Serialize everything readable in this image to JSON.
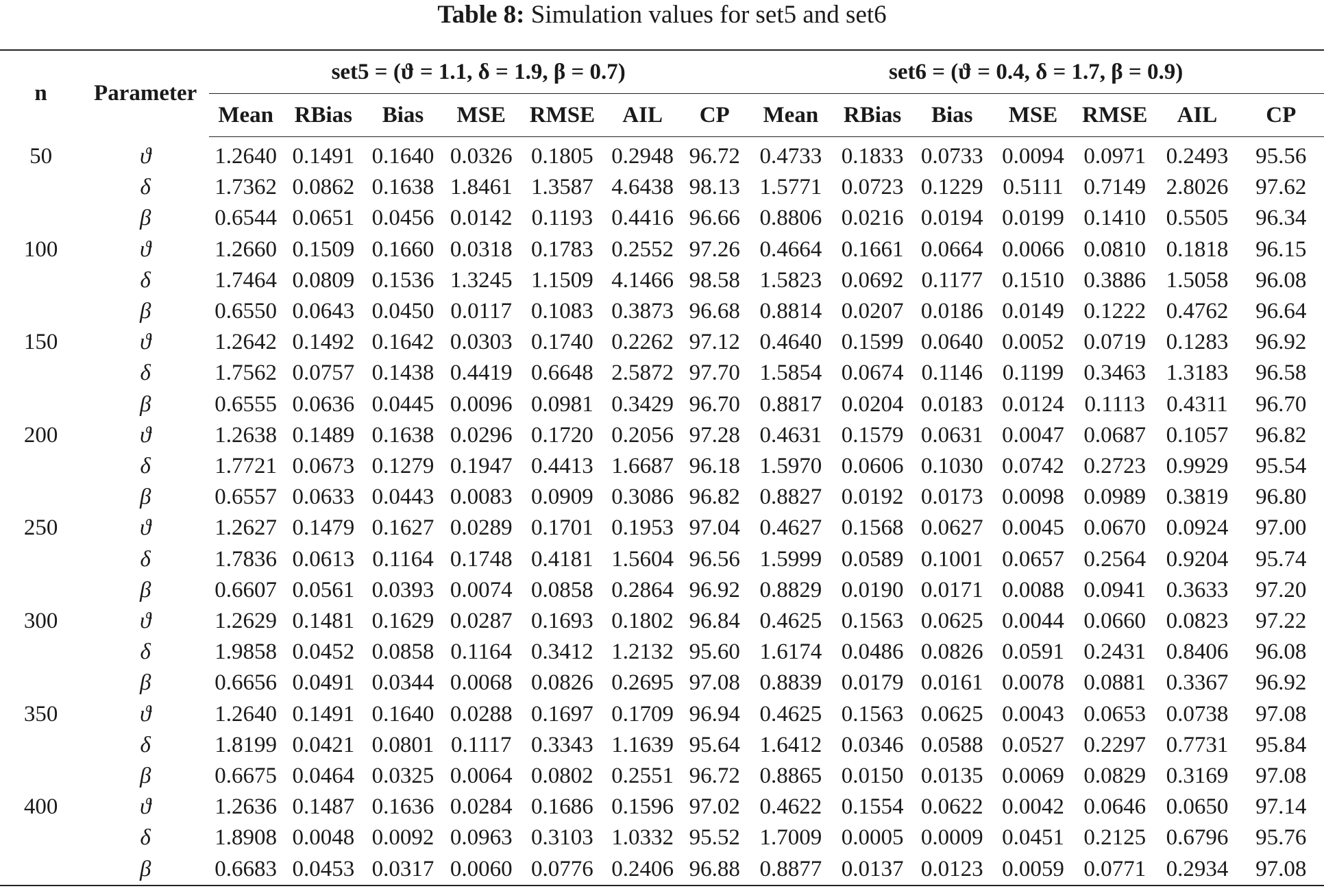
{
  "caption": {
    "label": "Table 8:",
    "text": "Simulation values for set5 and set6"
  },
  "headers": {
    "n": "n",
    "parameter": "Parameter",
    "set5": "set5 = (ϑ = 1.1, δ = 1.9, β = 0.7)",
    "set6": "set6 = (ϑ = 0.4, δ = 1.7, β = 0.9)",
    "columns": [
      "Mean",
      "RBias",
      "Bias",
      "MSE",
      "RMSE",
      "AIL",
      "CP"
    ]
  },
  "rows": [
    {
      "n": "50",
      "param": "ϑ",
      "set5": [
        "1.2640",
        "0.1491",
        "0.1640",
        "0.0326",
        "0.1805",
        "0.2948",
        "96.72"
      ],
      "set6": [
        "0.4733",
        "0.1833",
        "0.0733",
        "0.0094",
        "0.0971",
        "0.2493",
        "95.56"
      ]
    },
    {
      "n": "",
      "param": "δ",
      "set5": [
        "1.7362",
        "0.0862",
        "0.1638",
        "1.8461",
        "1.3587",
        "4.6438",
        "98.13"
      ],
      "set6": [
        "1.5771",
        "0.0723",
        "0.1229",
        "0.5111",
        "0.7149",
        "2.8026",
        "97.62"
      ]
    },
    {
      "n": "",
      "param": "β",
      "set5": [
        "0.6544",
        "0.0651",
        "0.0456",
        "0.0142",
        "0.1193",
        "0.4416",
        "96.66"
      ],
      "set6": [
        "0.8806",
        "0.0216",
        "0.0194",
        "0.0199",
        "0.1410",
        "0.5505",
        "96.34"
      ]
    },
    {
      "n": "100",
      "param": "ϑ",
      "set5": [
        "1.2660",
        "0.1509",
        "0.1660",
        "0.0318",
        "0.1783",
        "0.2552",
        "97.26"
      ],
      "set6": [
        "0.4664",
        "0.1661",
        "0.0664",
        "0.0066",
        "0.0810",
        "0.1818",
        "96.15"
      ]
    },
    {
      "n": "",
      "param": "δ",
      "set5": [
        "1.7464",
        "0.0809",
        "0.1536",
        "1.3245",
        "1.1509",
        "4.1466",
        "98.58"
      ],
      "set6": [
        "1.5823",
        "0.0692",
        "0.1177",
        "0.1510",
        "0.3886",
        "1.5058",
        "96.08"
      ]
    },
    {
      "n": "",
      "param": "β",
      "set5": [
        "0.6550",
        "0.0643",
        "0.0450",
        "0.0117",
        "0.1083",
        "0.3873",
        "96.68"
      ],
      "set6": [
        "0.8814",
        "0.0207",
        "0.0186",
        "0.0149",
        "0.1222",
        "0.4762",
        "96.64"
      ]
    },
    {
      "n": "150",
      "param": "ϑ",
      "set5": [
        "1.2642",
        "0.1492",
        "0.1642",
        "0.0303",
        "0.1740",
        "0.2262",
        "97.12"
      ],
      "set6": [
        "0.4640",
        "0.1599",
        "0.0640",
        "0.0052",
        "0.0719",
        "0.1283",
        "96.92"
      ]
    },
    {
      "n": "",
      "param": "δ",
      "set5": [
        "1.7562",
        "0.0757",
        "0.1438",
        "0.4419",
        "0.6648",
        "2.5872",
        "97.70"
      ],
      "set6": [
        "1.5854",
        "0.0674",
        "0.1146",
        "0.1199",
        "0.3463",
        "1.3183",
        "96.58"
      ]
    },
    {
      "n": "",
      "param": "β",
      "set5": [
        "0.6555",
        "0.0636",
        "0.0445",
        "0.0096",
        "0.0981",
        "0.3429",
        "96.70"
      ],
      "set6": [
        "0.8817",
        "0.0204",
        "0.0183",
        "0.0124",
        "0.1113",
        "0.4311",
        "96.70"
      ]
    },
    {
      "n": "200",
      "param": "ϑ",
      "set5": [
        "1.2638",
        "0.1489",
        "0.1638",
        "0.0296",
        "0.1720",
        "0.2056",
        "97.28"
      ],
      "set6": [
        "0.4631",
        "0.1579",
        "0.0631",
        "0.0047",
        "0.0687",
        "0.1057",
        "96.82"
      ]
    },
    {
      "n": "",
      "param": "δ",
      "set5": [
        "1.7721",
        "0.0673",
        "0.1279",
        "0.1947",
        "0.4413",
        "1.6687",
        "96.18"
      ],
      "set6": [
        "1.5970",
        "0.0606",
        "0.1030",
        "0.0742",
        "0.2723",
        "0.9929",
        "95.54"
      ]
    },
    {
      "n": "",
      "param": "β",
      "set5": [
        "0.6557",
        "0.0633",
        "0.0443",
        "0.0083",
        "0.0909",
        "0.3086",
        "96.82"
      ],
      "set6": [
        "0.8827",
        "0.0192",
        "0.0173",
        "0.0098",
        "0.0989",
        "0.3819",
        "96.80"
      ]
    },
    {
      "n": "250",
      "param": "ϑ",
      "set5": [
        "1.2627",
        "0.1479",
        "0.1627",
        "0.0289",
        "0.1701",
        "0.1953",
        "97.04"
      ],
      "set6": [
        "0.4627",
        "0.1568",
        "0.0627",
        "0.0045",
        "0.0670",
        "0.0924",
        "97.00"
      ]
    },
    {
      "n": "",
      "param": "δ",
      "set5": [
        "1.7836",
        "0.0613",
        "0.1164",
        "0.1748",
        "0.4181",
        "1.5604",
        "96.56"
      ],
      "set6": [
        "1.5999",
        "0.0589",
        "0.1001",
        "0.0657",
        "0.2564",
        "0.9204",
        "95.74"
      ]
    },
    {
      "n": "",
      "param": "β",
      "set5": [
        "0.6607",
        "0.0561",
        "0.0393",
        "0.0074",
        "0.0858",
        "0.2864",
        "96.92"
      ],
      "set6": [
        "0.8829",
        "0.0190",
        "0.0171",
        "0.0088",
        "0.0941",
        "0.3633",
        "97.20"
      ]
    },
    {
      "n": "300",
      "param": "ϑ",
      "set5": [
        "1.2629",
        "0.1481",
        "0.1629",
        "0.0287",
        "0.1693",
        "0.1802",
        "96.84"
      ],
      "set6": [
        "0.4625",
        "0.1563",
        "0.0625",
        "0.0044",
        "0.0660",
        "0.0823",
        "97.22"
      ]
    },
    {
      "n": "",
      "param": "δ",
      "set5": [
        "1.9858",
        "0.0452",
        "0.0858",
        "0.1164",
        "0.3412",
        "1.2132",
        "95.60"
      ],
      "set6": [
        "1.6174",
        "0.0486",
        "0.0826",
        "0.0591",
        "0.2431",
        "0.8406",
        "96.08"
      ]
    },
    {
      "n": "",
      "param": "β",
      "set5": [
        "0.6656",
        "0.0491",
        "0.0344",
        "0.0068",
        "0.0826",
        "0.2695",
        "97.08"
      ],
      "set6": [
        "0.8839",
        "0.0179",
        "0.0161",
        "0.0078",
        "0.0881",
        "0.3367",
        "96.92"
      ]
    },
    {
      "n": "350",
      "param": "ϑ",
      "set5": [
        "1.2640",
        "0.1491",
        "0.1640",
        "0.0288",
        "0.1697",
        "0.1709",
        "96.94"
      ],
      "set6": [
        "0.4625",
        "0.1563",
        "0.0625",
        "0.0043",
        "0.0653",
        "0.0738",
        "97.08"
      ]
    },
    {
      "n": "",
      "param": "δ",
      "set5": [
        "1.8199",
        "0.0421",
        "0.0801",
        "0.1117",
        "0.3343",
        "1.1639",
        "95.64"
      ],
      "set6": [
        "1.6412",
        "0.0346",
        "0.0588",
        "0.0527",
        "0.2297",
        "0.7731",
        "95.84"
      ]
    },
    {
      "n": "",
      "param": "β",
      "set5": [
        "0.6675",
        "0.0464",
        "0.0325",
        "0.0064",
        "0.0802",
        "0.2551",
        "96.72"
      ],
      "set6": [
        "0.8865",
        "0.0150",
        "0.0135",
        "0.0069",
        "0.0829",
        "0.3169",
        "97.08"
      ]
    },
    {
      "n": "400",
      "param": "ϑ",
      "set5": [
        "1.2636",
        "0.1487",
        "0.1636",
        "0.0284",
        "0.1686",
        "0.1596",
        "97.02"
      ],
      "set6": [
        "0.4622",
        "0.1554",
        "0.0622",
        "0.0042",
        "0.0646",
        "0.0650",
        "97.14"
      ]
    },
    {
      "n": "",
      "param": "δ",
      "set5": [
        "1.8908",
        "0.0048",
        "0.0092",
        "0.0963",
        "0.3103",
        "1.0332",
        "95.52"
      ],
      "set6": [
        "1.7009",
        "0.0005",
        "0.0009",
        "0.0451",
        "0.2125",
        "0.6796",
        "95.76"
      ]
    },
    {
      "n": "",
      "param": "β",
      "set5": [
        "0.6683",
        "0.0453",
        "0.0317",
        "0.0060",
        "0.0776",
        "0.2406",
        "96.88"
      ],
      "set6": [
        "0.8877",
        "0.0137",
        "0.0123",
        "0.0059",
        "0.0771",
        "0.2934",
        "97.08"
      ]
    }
  ]
}
